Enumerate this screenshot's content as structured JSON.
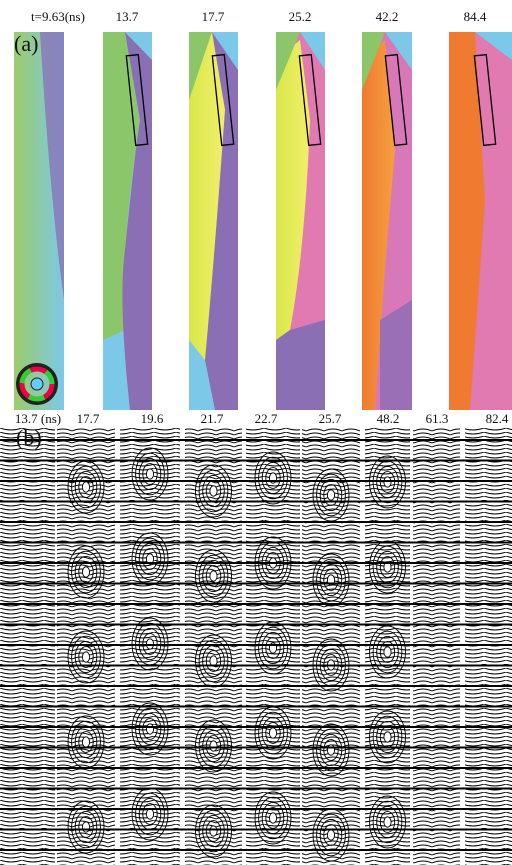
{
  "panel_a": {
    "label": "(a)",
    "time_labels": [
      "t=9.63(ns)",
      "13.7",
      "17.7",
      "25.2",
      "42.2",
      "84.4"
    ]
  },
  "panel_b": {
    "label": "(b)",
    "time_labels": [
      "13.7 (ns)",
      "17.7",
      "19.6",
      "21.7",
      "22.7",
      "25.7",
      "48.2",
      "61.3",
      "82.4"
    ]
  }
}
